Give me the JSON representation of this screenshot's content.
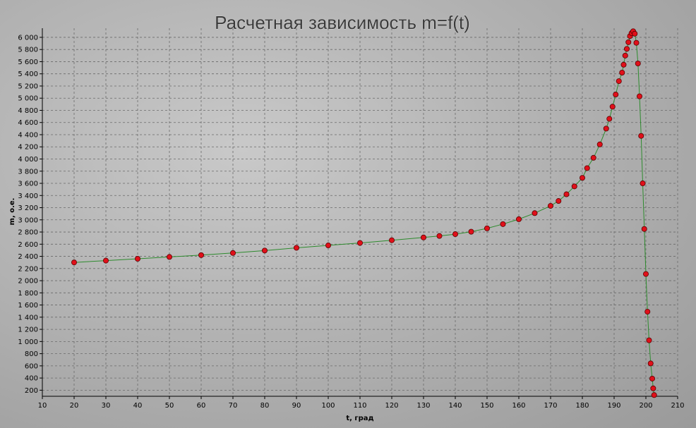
{
  "chart_data": {
    "type": "line",
    "title": "Расчетная зависимость m=f(t)",
    "xlabel": "t, град",
    "ylabel": "m, о.е.",
    "xlim": [
      10,
      210
    ],
    "ylim": [
      100,
      6150
    ],
    "xticks": [
      10,
      20,
      30,
      40,
      50,
      60,
      70,
      80,
      90,
      100,
      110,
      120,
      130,
      140,
      150,
      160,
      170,
      180,
      190,
      200,
      210
    ],
    "yticks": [
      200,
      400,
      600,
      800,
      1000,
      1200,
      1400,
      1600,
      1800,
      2000,
      2200,
      2400,
      2600,
      2800,
      3000,
      3200,
      3400,
      3600,
      3800,
      4000,
      4200,
      4400,
      4600,
      4800,
      5000,
      5200,
      5400,
      5600,
      5800,
      6000
    ],
    "xtick_labels": [
      "10",
      "20",
      "30",
      "40",
      "50",
      "60",
      "70",
      "80",
      "90",
      "100",
      "110",
      "120",
      "130",
      "140",
      "150",
      "160",
      "170",
      "180",
      "190",
      "200",
      "210"
    ],
    "ytick_labels": [
      "200",
      "400",
      "600",
      "800",
      "1 000",
      "1 200",
      "1 400",
      "1 600",
      "1 800",
      "2 000",
      "2 200",
      "2 400",
      "2 600",
      "2 800",
      "3 000",
      "3 200",
      "3 400",
      "3 600",
      "3 800",
      "4 000",
      "4 200",
      "4 400",
      "4 600",
      "4 800",
      "5 000",
      "5 200",
      "5 400",
      "5 600",
      "5 800",
      "6 000"
    ],
    "grid": true,
    "line_color": "#2e8b2e",
    "marker_color": "#e0101a",
    "series": [
      {
        "x": [
          20,
          30,
          40,
          50,
          60,
          70,
          80,
          90,
          100,
          110,
          120,
          130,
          135,
          140,
          145,
          150,
          155,
          160,
          165,
          170,
          172.5,
          175,
          177.5,
          180,
          181.5,
          183.5,
          185.5,
          187.5,
          188.5,
          189.5,
          190.5,
          191.5,
          192.5,
          193,
          193.5,
          194,
          194.5,
          195,
          195.5,
          196,
          196.5,
          197,
          197.5,
          198,
          198.5,
          199,
          199.5,
          200,
          200.5,
          201,
          201.5,
          202,
          202.3,
          202.6
        ],
        "y": [
          2300,
          2330,
          2360,
          2390,
          2420,
          2455,
          2495,
          2540,
          2580,
          2620,
          2665,
          2710,
          2735,
          2765,
          2805,
          2860,
          2930,
          3010,
          3110,
          3230,
          3310,
          3420,
          3550,
          3690,
          3850,
          4020,
          4240,
          4500,
          4660,
          4860,
          5060,
          5280,
          5420,
          5550,
          5700,
          5810,
          5920,
          6020,
          6070,
          6100,
          6060,
          5910,
          5570,
          5030,
          4380,
          3600,
          2850,
          2110,
          1490,
          1020,
          640,
          390,
          230,
          120
        ]
      }
    ]
  }
}
